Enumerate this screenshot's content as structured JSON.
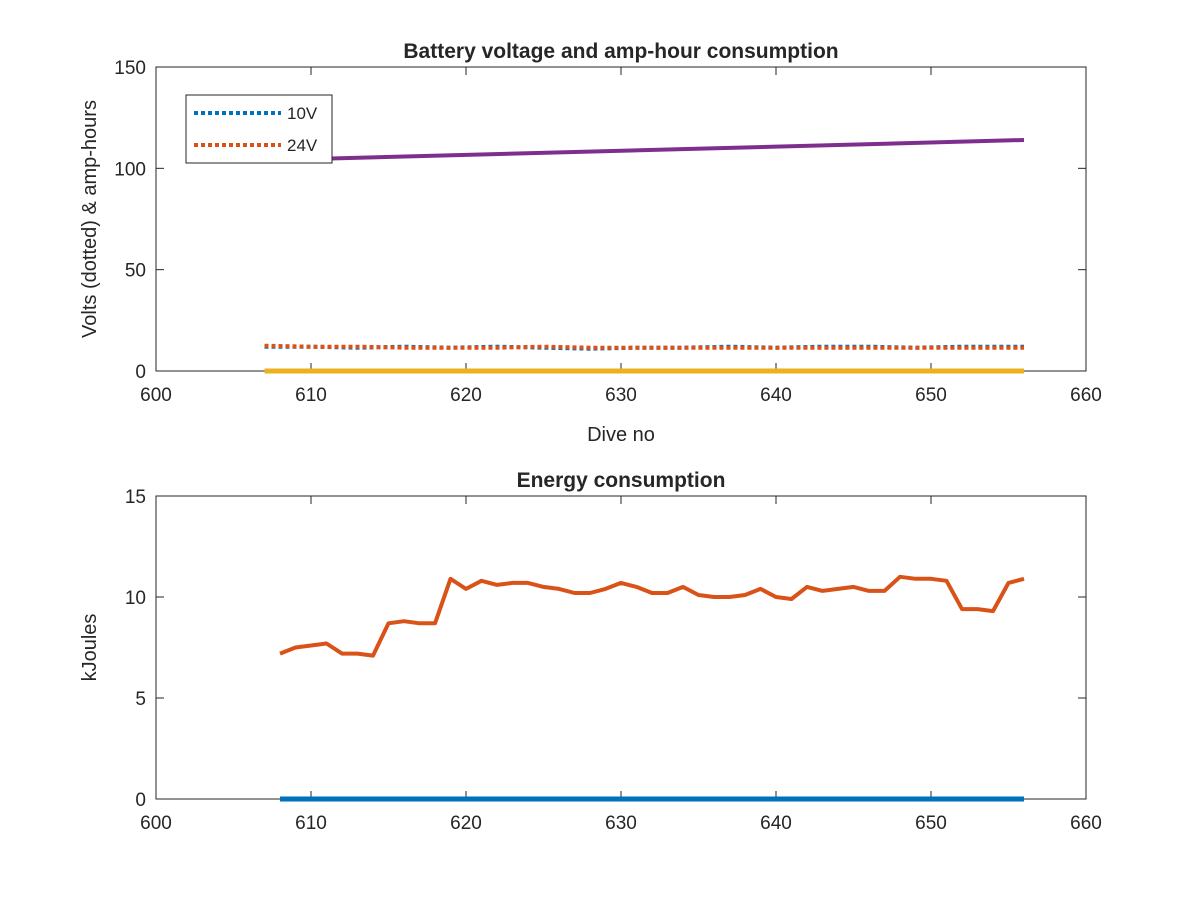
{
  "chart_data": [
    {
      "type": "line",
      "title": "Battery voltage and amp-hour consumption",
      "xlabel": "Dive no",
      "ylabel": "Volts (dotted) & amp-hours",
      "xlim": [
        600,
        660
      ],
      "ylim": [
        0,
        150
      ],
      "xticks": [
        "600",
        "610",
        "620",
        "630",
        "640",
        "650",
        "660"
      ],
      "yticks": [
        "0",
        "50",
        "100",
        "150"
      ],
      "legend_position": "top-left",
      "grid": false,
      "series": [
        {
          "name": "10V",
          "style": "dotted",
          "color": "#0072BD",
          "x": [
            607,
            610,
            613,
            616,
            619,
            622,
            625,
            628,
            631,
            634,
            637,
            640,
            643,
            646,
            649,
            652,
            656
          ],
          "values": [
            12,
            12,
            11.5,
            12,
            11.5,
            12,
            11.5,
            11,
            11.5,
            11.5,
            12,
            11.5,
            12,
            12,
            11.5,
            12,
            12
          ]
        },
        {
          "name": "24V",
          "style": "dotted",
          "color": "#D95319",
          "x": [
            607,
            610,
            613,
            616,
            619,
            622,
            625,
            628,
            631,
            634,
            637,
            640,
            643,
            646,
            649,
            652,
            656
          ],
          "values": [
            12.5,
            12,
            12,
            11.5,
            11.5,
            11.5,
            12,
            11.5,
            11.5,
            11.5,
            11.5,
            11.5,
            11.5,
            11.5,
            11.5,
            11.5,
            11.5
          ]
        },
        {
          "style": "solid",
          "color": "#7E2F8E",
          "x": [
            607,
            656
          ],
          "values": [
            104,
            114
          ]
        },
        {
          "style": "solid",
          "color": "#EDB120",
          "x": [
            607,
            656
          ],
          "values": [
            0,
            0
          ]
        }
      ]
    },
    {
      "type": "line",
      "title": "Energy consumption",
      "xlabel": "",
      "ylabel": "kJoules",
      "xlim": [
        600,
        660
      ],
      "ylim": [
        0,
        15
      ],
      "xticks": [
        "600",
        "610",
        "620",
        "630",
        "640",
        "650",
        "660"
      ],
      "yticks": [
        "0",
        "5",
        "10",
        "15"
      ],
      "grid": false,
      "series": [
        {
          "style": "solid",
          "color": "#D95319",
          "x": [
            608,
            609,
            610,
            611,
            612,
            613,
            614,
            615,
            616,
            617,
            618,
            619,
            620,
            621,
            622,
            623,
            624,
            625,
            626,
            627,
            628,
            629,
            630,
            631,
            632,
            633,
            634,
            635,
            636,
            637,
            638,
            639,
            640,
            641,
            642,
            643,
            644,
            645,
            646,
            647,
            648,
            649,
            650,
            651,
            652,
            653,
            654,
            655,
            656
          ],
          "values": [
            7.2,
            7.5,
            7.6,
            7.7,
            7.2,
            7.2,
            7.1,
            8.7,
            8.8,
            8.7,
            8.7,
            10.9,
            10.4,
            10.8,
            10.6,
            10.7,
            10.7,
            10.5,
            10.4,
            10.2,
            10.2,
            10.4,
            10.7,
            10.5,
            10.2,
            10.2,
            10.5,
            10.1,
            10.0,
            10.0,
            10.1,
            10.4,
            10.0,
            9.9,
            10.5,
            10.3,
            10.4,
            10.5,
            10.3,
            10.3,
            11.0,
            10.9,
            10.9,
            10.8,
            9.4,
            9.4,
            9.3,
            10.7,
            10.9
          ]
        },
        {
          "style": "solid",
          "color": "#0072BD",
          "x": [
            608,
            656
          ],
          "values": [
            0,
            0
          ]
        }
      ]
    }
  ]
}
